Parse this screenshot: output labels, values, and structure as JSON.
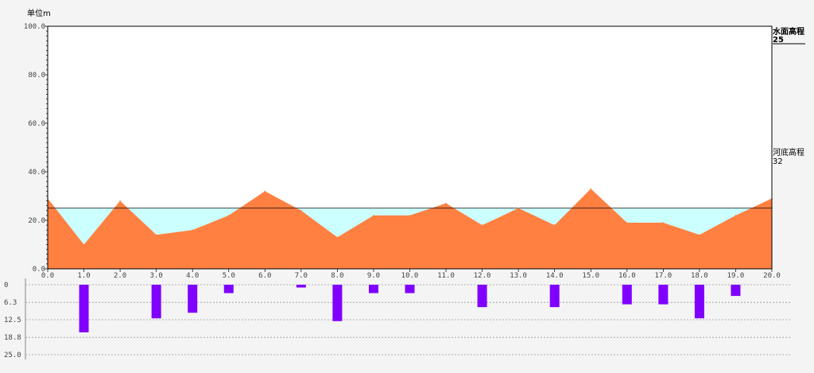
{
  "unit_label": "单位m",
  "water_level": {
    "label": "水面高程",
    "value": "25"
  },
  "river_bed": {
    "label": "河底高程",
    "value": "32"
  },
  "chart_data": [
    {
      "type": "area",
      "x": [
        0,
        1,
        2,
        3,
        4,
        5,
        6,
        7,
        8,
        9,
        10,
        11,
        12,
        13,
        14,
        15,
        16,
        17,
        18,
        19,
        20
      ],
      "series": [
        {
          "values": [
            29,
            10,
            28,
            14,
            16,
            22,
            32,
            24,
            13,
            22,
            22,
            27,
            18,
            25,
            18,
            33,
            19,
            19,
            14,
            22,
            29
          ]
        }
      ],
      "water_level": 25,
      "xlim": [
        0,
        20
      ],
      "ylim": [
        0,
        100
      ],
      "x_ticks": [
        "0.0",
        "1.0",
        "2.0",
        "3.0",
        "4.0",
        "5.0",
        "6.0",
        "7.0",
        "8.0",
        "9.0",
        "10.0",
        "11.0",
        "12.0",
        "13.0",
        "14.0",
        "15.0",
        "16.0",
        "17.0",
        "18.0",
        "19.0",
        "20.0"
      ],
      "y_ticks": [
        "0.0",
        "20.0",
        "40.0",
        "60.0",
        "80.0",
        "100.0"
      ],
      "colors": {
        "bed": "#ff8040",
        "water": "#ccffff",
        "frame": "#000000"
      }
    },
    {
      "type": "bar",
      "x": [
        0,
        1,
        2,
        3,
        4,
        5,
        6,
        7,
        8,
        9,
        10,
        11,
        12,
        13,
        14,
        15,
        16,
        17,
        18,
        19,
        20
      ],
      "values": [
        0,
        17,
        0,
        12,
        10,
        3,
        0,
        1,
        13,
        3,
        3,
        0,
        8,
        0,
        8,
        0,
        7,
        7,
        12,
        4,
        0
      ],
      "ylim": [
        0,
        25
      ],
      "y_ticks": [
        "0",
        "6.3",
        "12.5",
        "18.8",
        "25.0"
      ],
      "colors": {
        "bar": "#8000ff",
        "grid": "#999999"
      }
    }
  ]
}
